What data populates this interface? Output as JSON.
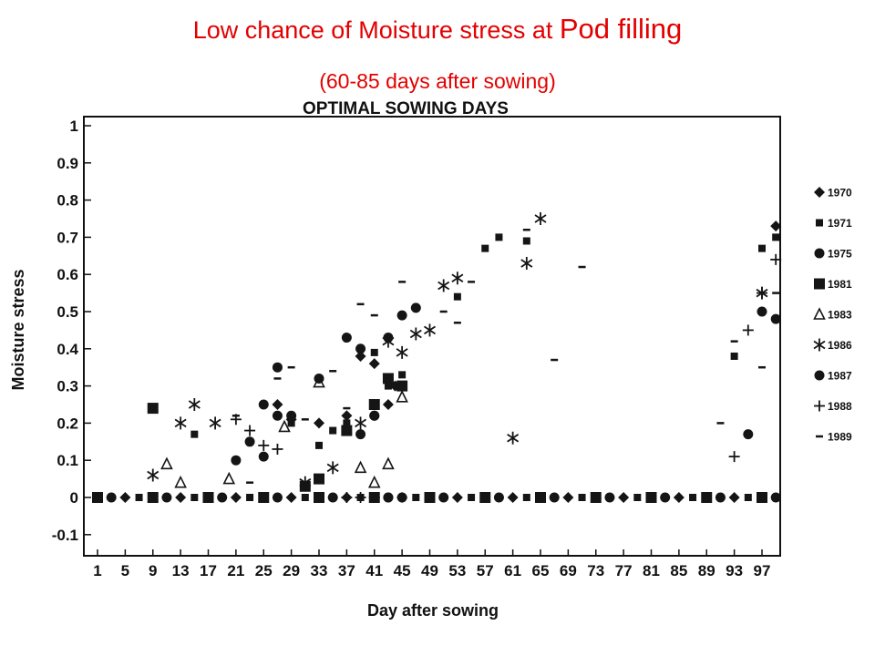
{
  "slide": {
    "title_part1": "Low chance of Moisture stress at ",
    "title_part2": "Pod filling",
    "subtitle": "(60-85 days after sowing)"
  },
  "chart_data": {
    "type": "scatter",
    "title": "OPTIMAL SOWING DAYS",
    "xlabel": "Day after sowing",
    "ylabel": "Moisture stress",
    "xlim": [
      0,
      100
    ],
    "ylim": [
      -0.1,
      1
    ],
    "x_ticks": [
      "1",
      "5",
      "9",
      "13",
      "17",
      "21",
      "25",
      "29",
      "33",
      "37",
      "41",
      "45",
      "49",
      "53",
      "57",
      "61",
      "65",
      "69",
      "73",
      "77",
      "81",
      "85",
      "89",
      "93",
      "97"
    ],
    "y_ticks": [
      "-0.1",
      "0",
      "0.1",
      "0.2",
      "0.3",
      "0.4",
      "0.5",
      "0.6",
      "0.7",
      "0.8",
      "0.9",
      "1"
    ],
    "legend_position": "right",
    "grid": false,
    "series": [
      {
        "name": "1970",
        "marker": "diamond",
        "points": [
          [
            27,
            0.25
          ],
          [
            29,
            0.21
          ],
          [
            33,
            0.2
          ],
          [
            37,
            0.22
          ],
          [
            39,
            0.38
          ],
          [
            41,
            0.36
          ],
          [
            43,
            0.25
          ],
          [
            44,
            0.3
          ],
          [
            99,
            0.73
          ]
        ]
      },
      {
        "name": "1971",
        "marker": "small-square",
        "points": [
          [
            15,
            0.17
          ],
          [
            29,
            0.2
          ],
          [
            33,
            0.14
          ],
          [
            35,
            0.18
          ],
          [
            37,
            0.2
          ],
          [
            41,
            0.39
          ],
          [
            43,
            0.3
          ],
          [
            45,
            0.33
          ],
          [
            53,
            0.54
          ],
          [
            57,
            0.67
          ],
          [
            59,
            0.7
          ],
          [
            63,
            0.69
          ],
          [
            93,
            0.38
          ],
          [
            97,
            0.67
          ],
          [
            99,
            0.7
          ]
        ]
      },
      {
        "name": "1975",
        "marker": "circle",
        "points": [
          [
            25,
            0.25
          ],
          [
            27,
            0.22
          ],
          [
            39,
            0.17
          ],
          [
            41,
            0.22
          ],
          [
            43,
            0.0
          ],
          [
            45,
            0.0
          ],
          [
            95,
            0.17
          ],
          [
            97,
            0.5
          ],
          [
            99,
            0.48
          ]
        ]
      },
      {
        "name": "1981",
        "marker": "big-square",
        "points": [
          [
            9,
            0.24
          ],
          [
            31,
            0.03
          ],
          [
            33,
            0.05
          ],
          [
            37,
            0.18
          ],
          [
            41,
            0.25
          ],
          [
            43,
            0.32
          ],
          [
            45,
            0.3
          ]
        ]
      },
      {
        "name": "1983",
        "marker": "triangle",
        "points": [
          [
            11,
            0.09
          ],
          [
            13,
            0.04
          ],
          [
            20,
            0.05
          ],
          [
            28,
            0.19
          ],
          [
            33,
            0.31
          ],
          [
            39,
            0.08
          ],
          [
            41,
            0.04
          ],
          [
            43,
            0.09
          ],
          [
            45,
            0.27
          ]
        ]
      },
      {
        "name": "1986",
        "marker": "asterisk",
        "points": [
          [
            9,
            0.06
          ],
          [
            13,
            0.2
          ],
          [
            15,
            0.25
          ],
          [
            18,
            0.2
          ],
          [
            31,
            0.04
          ],
          [
            35,
            0.08
          ],
          [
            39,
            0.2
          ],
          [
            43,
            0.42
          ],
          [
            45,
            0.39
          ],
          [
            47,
            0.44
          ],
          [
            49,
            0.45
          ],
          [
            51,
            0.57
          ],
          [
            53,
            0.59
          ],
          [
            61,
            0.16
          ],
          [
            63,
            0.63
          ],
          [
            65,
            0.75
          ],
          [
            97,
            0.55
          ]
        ]
      },
      {
        "name": "1987",
        "marker": "circle",
        "points": [
          [
            21,
            0.1
          ],
          [
            23,
            0.15
          ],
          [
            25,
            0.11
          ],
          [
            27,
            0.35
          ],
          [
            29,
            0.22
          ],
          [
            33,
            0.32
          ],
          [
            37,
            0.43
          ],
          [
            39,
            0.4
          ],
          [
            41,
            0.22
          ],
          [
            43,
            0.43
          ],
          [
            45,
            0.49
          ],
          [
            47,
            0.51
          ]
        ]
      },
      {
        "name": "1988",
        "marker": "plus",
        "points": [
          [
            21,
            0.21
          ],
          [
            23,
            0.18
          ],
          [
            25,
            0.14
          ],
          [
            27,
            0.13
          ],
          [
            37,
            0.0
          ],
          [
            39,
            0.0
          ],
          [
            41,
            0.0
          ],
          [
            93,
            0.11
          ],
          [
            95,
            0.45
          ],
          [
            97,
            0.55
          ],
          [
            99,
            0.64
          ]
        ]
      },
      {
        "name": "1989",
        "marker": "dash",
        "points": [
          [
            21,
            0.22
          ],
          [
            23,
            0.04
          ],
          [
            27,
            0.32
          ],
          [
            29,
            0.35
          ],
          [
            31,
            0.21
          ],
          [
            35,
            0.34
          ],
          [
            37,
            0.24
          ],
          [
            39,
            0.52
          ],
          [
            41,
            0.49
          ],
          [
            45,
            0.58
          ],
          [
            51,
            0.5
          ],
          [
            53,
            0.47
          ],
          [
            55,
            0.58
          ],
          [
            63,
            0.72
          ],
          [
            67,
            0.37
          ],
          [
            71,
            0.62
          ],
          [
            91,
            0.2
          ],
          [
            93,
            0.42
          ],
          [
            97,
            0.35
          ],
          [
            99,
            0.55
          ]
        ]
      }
    ],
    "baseline": {
      "y": 0,
      "x_from": 1,
      "x_to": 99,
      "step": 2,
      "markers": [
        "big-square",
        "circle",
        "diamond",
        "small-square"
      ]
    }
  }
}
